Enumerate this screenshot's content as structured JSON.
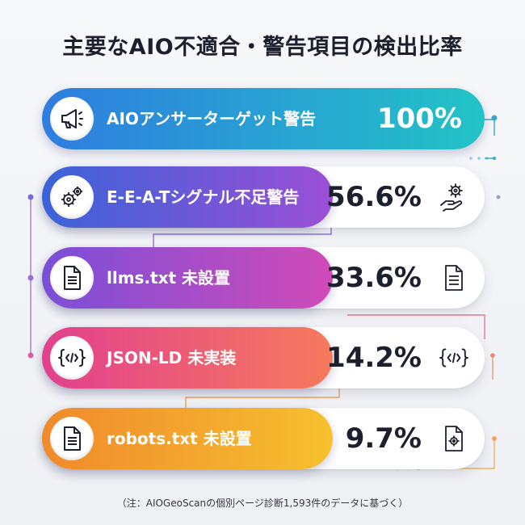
{
  "title": "主要なAIO不適合・警告項目の検出比率",
  "note": "（注：AIOGeoScanの個別ページ診断1,593件のデータに基づく）",
  "chart_data": {
    "type": "bar",
    "title": "主要なAIO不適合・警告項目の検出比率",
    "categories": [
      "AIOアンサーターゲット警告",
      "E-E-A-Tシグナル不足警告",
      "llms.txt 未設置",
      "JSON-LD 未実装",
      "robots.txt 未設置"
    ],
    "values": [
      100,
      56.6,
      33.6,
      14.2,
      9.7
    ],
    "value_labels": [
      "100%",
      "56.6%",
      "33.6%",
      "14.2%",
      "9.7%"
    ],
    "unit": "%",
    "ylim": [
      0,
      100
    ],
    "orientation": "horizontal"
  },
  "rows": [
    {
      "label": "AIOアンサーターゲット警告",
      "pct": "100%",
      "icon": "megaphone-icon",
      "gradient": [
        "#2f7de0",
        "#22c3c6"
      ]
    },
    {
      "label": "E-E-A-Tシグナル不足警告",
      "pct": "56.6%",
      "icon": "gears-icon",
      "side_icon": "hand-gear-icon",
      "gradient": [
        "#3a63d8",
        "#9b4fd6"
      ]
    },
    {
      "label": "llms.txt 未設置",
      "pct": "33.6%",
      "icon": "document-icon",
      "side_icon": "document-icon",
      "gradient": [
        "#7a4fd8",
        "#d04bb8"
      ]
    },
    {
      "label": "JSON-LD 未実装",
      "pct": "14.2%",
      "icon": "code-icon",
      "side_icon": "code-icon",
      "gradient": [
        "#e2408e",
        "#f67a5c"
      ]
    },
    {
      "label": "robots.txt 未設置",
      "pct": "9.7%",
      "icon": "document-icon",
      "side_icon": "document-gear-icon",
      "gradient": [
        "#f08a2c",
        "#f6c02f"
      ]
    }
  ]
}
